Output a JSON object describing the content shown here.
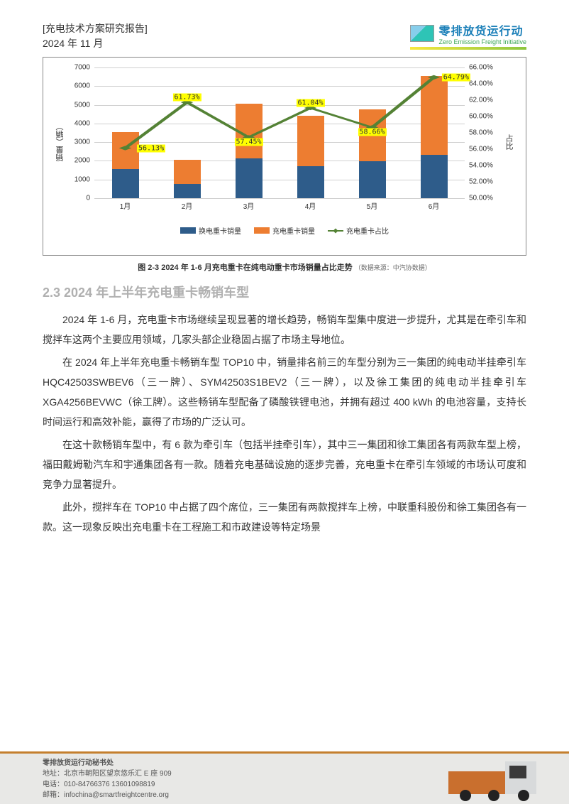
{
  "header": {
    "doc_title": "[充电技术方案研究报告]",
    "date": "2024 年 11 月",
    "logo_cn": "零排放货运行动",
    "logo_en": "Zero Emission Freight Initiative"
  },
  "chart": {
    "type": "stacked-bar-with-line",
    "y_left_label": "销量（辆）",
    "y_right_label": "占比",
    "y_left_min": 0,
    "y_left_max": 7000,
    "y_left_step": 1000,
    "y_right_min": 50.0,
    "y_right_max": 66.0,
    "y_right_step": 2.0,
    "categories": [
      "1月",
      "2月",
      "3月",
      "4月",
      "5月",
      "6月"
    ],
    "series_swap": [
      1550,
      780,
      2150,
      1720,
      1960,
      2310
    ],
    "series_charge": [
      1980,
      1260,
      2900,
      2690,
      2780,
      4250
    ],
    "line_pct": [
      56.13,
      61.73,
      57.45,
      61.04,
      58.66,
      64.79
    ],
    "pct_labels": [
      "56.13%",
      "61.73%",
      "57.45%",
      "61.04%",
      "58.66%",
      "64.79%"
    ],
    "colors": {
      "swap": "#2e5c8a",
      "charge": "#ed7d31",
      "line": "#548235",
      "grid": "#d0d0d0",
      "highlight": "#ffff00"
    },
    "legend": {
      "swap": "换电重卡销量",
      "charge": "充电重卡销量",
      "line": "充电重卡占比"
    },
    "caption_bold": "图 2-3 2024 年 1-6 月充电重卡在纯电动重卡市场销量占比走势",
    "caption_src": "（数据来源：中汽协数据）"
  },
  "section_heading": "2.3 2024 年上半年充电重卡畅销车型",
  "paragraphs": [
    "2024 年 1-6 月，充电重卡市场继续呈现显著的增长趋势，畅销车型集中度进一步提升，尤其是在牵引车和搅拌车这两个主要应用领域，几家头部企业稳固占据了市场主导地位。",
    "在 2024 年上半年充电重卡畅销车型 TOP10 中，销量排名前三的车型分别为三一集团的纯电动半挂牵引车 HQC42503SWBEV6（三一牌）、SYM42503S1BEV2（三一牌），以及徐工集团的纯电动半挂牵引车 XGA4256BEVWC（徐工牌）。这些畅销车型配备了磷酸铁锂电池，并拥有超过 400 kWh 的电池容量，支持长时间运行和高效补能，赢得了市场的广泛认可。",
    "在这十款畅销车型中，有 6 款为牵引车（包括半挂牵引车），其中三一集团和徐工集团各有两款车型上榜，福田戴姆勒汽车和宇通集团各有一款。随着充电基础设施的逐步完善，充电重卡在牵引车领域的市场认可度和竞争力显著提升。",
    "此外，搅拌车在 TOP10 中占据了四个席位，三一集团有两款搅拌车上榜，中联重科股份和徐工集团各有一款。这一现象反映出充电重卡在工程施工和市政建设等特定场景"
  ],
  "footer": {
    "org": "零排放货运行动秘书处",
    "addr_label": "地址：",
    "addr": "北京市朝阳区望京悠乐汇 E 座 909",
    "tel_label": "电话：",
    "tel": "010-84766376  13601098819",
    "mail_label": "邮箱：",
    "mail": "infochina@smartfreightcentre.org"
  }
}
